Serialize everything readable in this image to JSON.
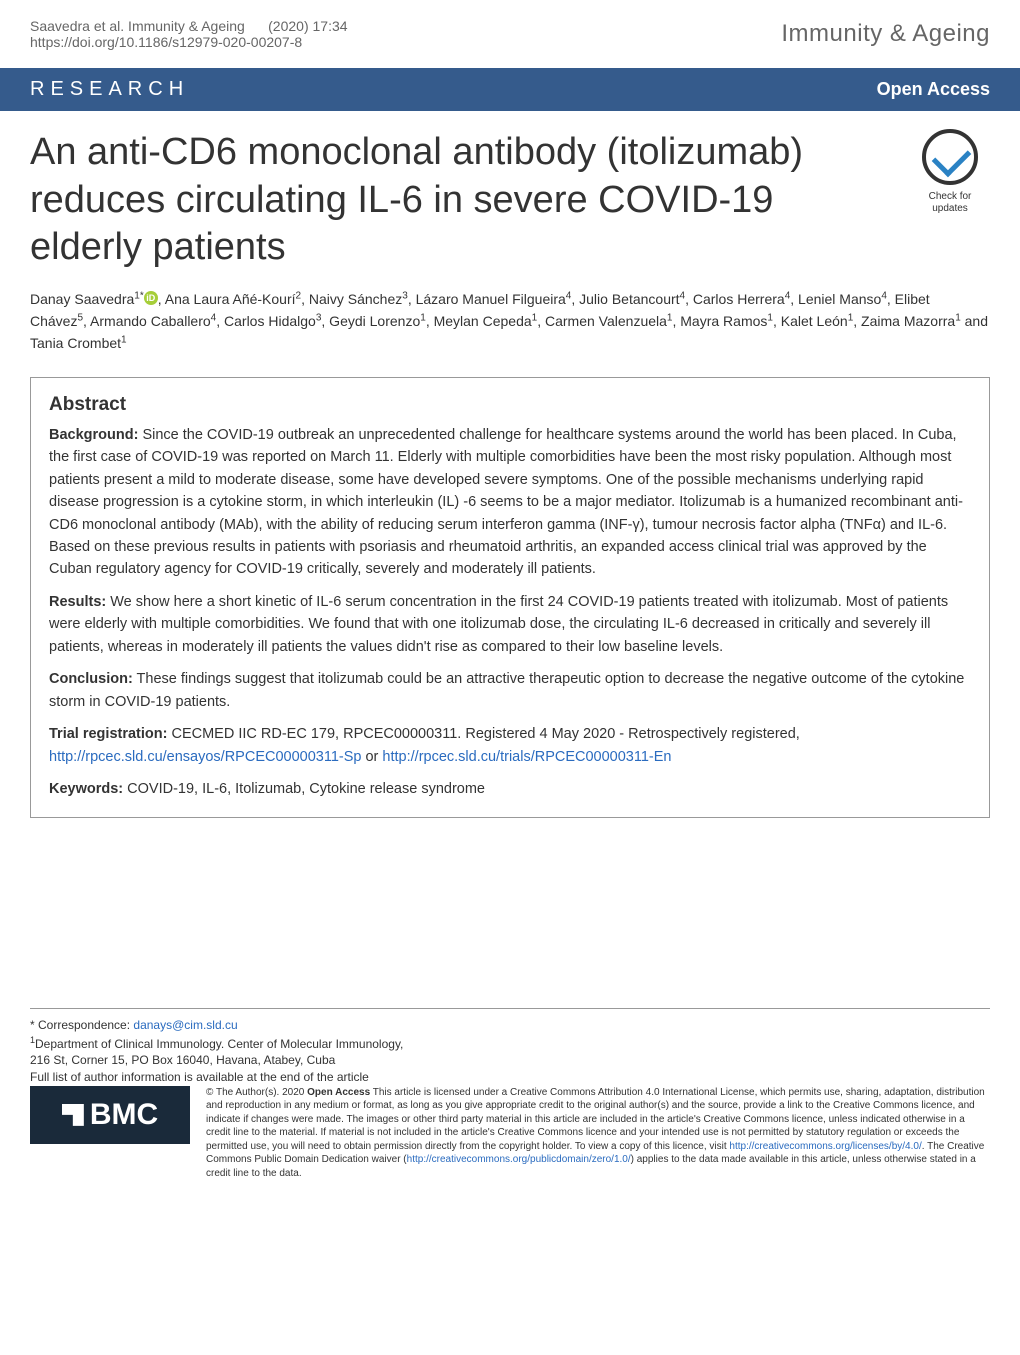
{
  "header": {
    "citation_authors": "Saavedra et al. Immunity & Ageing",
    "citation_issue": "(2020) 17:34",
    "doi": "https://doi.org/10.1186/s12979-020-00207-8",
    "journal": "Immunity & Ageing"
  },
  "research_bar": {
    "label": "RESEARCH",
    "access": "Open Access"
  },
  "title": "An anti-CD6 monoclonal antibody (itolizumab) reduces circulating IL-6 in severe COVID-19 elderly patients",
  "check_badge": {
    "line1": "Check for",
    "line2": "updates"
  },
  "authors_html": "Danay Saavedra<sup>1*</sup><span class='orcid'>iD</span>, Ana Laura Añé-Kourí<sup>2</sup>, Naivy Sánchez<sup>3</sup>, Lázaro Manuel Filgueira<sup>4</sup>, Julio Betancourt<sup>4</sup>, Carlos Herrera<sup>4</sup>, Leniel Manso<sup>4</sup>, Elibet Chávez<sup>5</sup>, Armando Caballero<sup>4</sup>, Carlos Hidalgo<sup>3</sup>, Geydi Lorenzo<sup>1</sup>, Meylan Cepeda<sup>1</sup>, Carmen Valenzuela<sup>1</sup>, Mayra Ramos<sup>1</sup>, Kalet León<sup>1</sup>, Zaima Mazorra<sup>1</sup> and Tania Crombet<sup>1</sup>",
  "abstract": {
    "heading": "Abstract",
    "background_label": "Background:",
    "background_text": " Since the COVID-19 outbreak an unprecedented challenge for healthcare systems around the world has been placed. In Cuba, the first case of COVID-19 was reported on March 11. Elderly with multiple comorbidities have been the most risky population. Although most patients present a mild to moderate disease, some have developed severe symptoms. One of the possible mechanisms underlying rapid disease progression is a cytokine storm, in which interleukin (IL) -6 seems to be a major mediator. Itolizumab is a humanized recombinant anti-CD6 monoclonal antibody (MAb), with the ability of reducing serum interferon gamma (INF-γ), tumour necrosis factor alpha (TNFα) and IL-6. Based on these previous results in patients with psoriasis and rheumatoid arthritis, an expanded access clinical trial was approved by the Cuban regulatory agency for COVID-19 critically, severely and moderately ill patients.",
    "results_label": "Results:",
    "results_text": " We show here a short kinetic of IL-6 serum concentration in the first 24 COVID-19 patients treated with itolizumab. Most of patients were elderly with multiple comorbidities. We found that with one itolizumab dose, the circulating IL-6 decreased in critically and severely ill patients, whereas in moderately ill patients the values didn't rise as compared to their low baseline levels.",
    "conclusion_label": "Conclusion:",
    "conclusion_text": " These findings suggest that itolizumab could be an attractive therapeutic option to decrease the negative outcome of the cytokine storm in COVID-19 patients.",
    "trial_label": "Trial registration:",
    "trial_text_prefix": " CECMED IIC RD-EC 179, RPCEC00000311. Registered 4 May 2020 - Retrospectively registered, ",
    "trial_link1": "http://rpcec.sld.cu/ensayos/RPCEC00000311-Sp",
    "trial_or": " or ",
    "trial_link2": "http://rpcec.sld.cu/trials/RPCEC00000311-En",
    "keywords_label": "Keywords:",
    "keywords_text": " COVID-19, IL-6, Itolizumab, Cytokine release syndrome"
  },
  "footer": {
    "correspondence_label": "* Correspondence: ",
    "correspondence_email": "danays@cim.sld.cu",
    "affiliation": "Department of Clinical Immunology. Center of Molecular Immunology, 216 St, Corner 15, PO Box 16040, Havana, Atabey, Cuba",
    "affiliation_sup": "1",
    "full_list": "Full list of author information is available at the end of the article",
    "bmc": "BMC",
    "license_prefix": "© The Author(s). 2020 ",
    "license_bold": "Open Access",
    "license_body1": " This article is licensed under a Creative Commons Attribution 4.0 International License, which permits use, sharing, adaptation, distribution and reproduction in any medium or format, as long as you give appropriate credit to the original author(s) and the source, provide a link to the Creative Commons licence, and indicate if changes were made. The images or other third party material in this article are included in the article's Creative Commons licence, unless indicated otherwise in a credit line to the material. If material is not included in the article's Creative Commons licence and your intended use is not permitted by statutory regulation or exceeds the permitted use, you will need to obtain permission directly from the copyright holder. To view a copy of this licence, visit ",
    "license_link1": "http://creativecommons.org/licenses/by/4.0/",
    "license_body2": ". The Creative Commons Public Domain Dedication waiver (",
    "license_link2": "http://creativecommons.org/publicdomain/zero/1.0/",
    "license_body3": ") applies to the data made available in this article, unless otherwise stated in a credit line to the data."
  },
  "colors": {
    "bar_bg": "#355b8c",
    "link": "#2a6bbf",
    "check_blue": "#2a82c4",
    "orcid": "#a6ce39",
    "bmc_bg": "#1a2a3a"
  }
}
